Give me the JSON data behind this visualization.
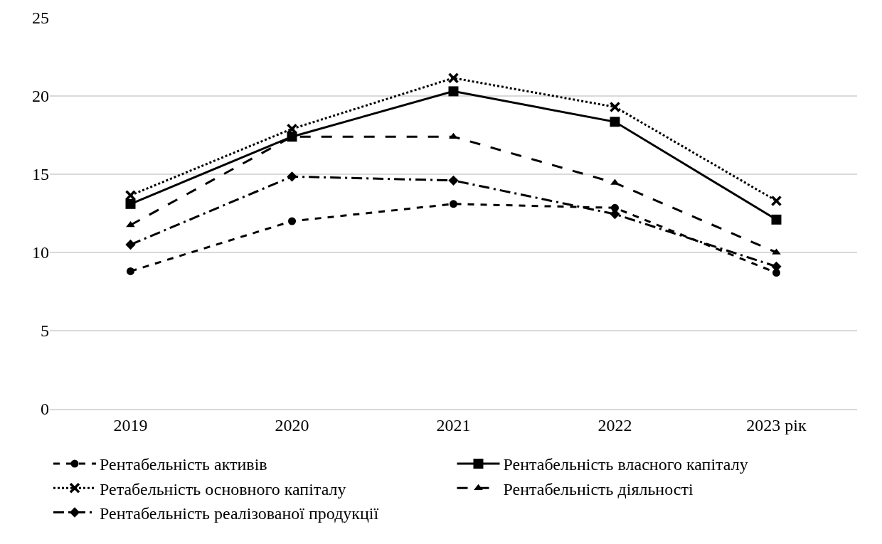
{
  "chart_data": {
    "type": "line",
    "categories": [
      "2019",
      "2020",
      "2021",
      "2022",
      "2023 рік"
    ],
    "ylim": [
      0,
      25
    ],
    "yticks": [
      0,
      5,
      10,
      15,
      20,
      25
    ],
    "grid": "y",
    "legend": "bottom",
    "series": [
      {
        "name": "Рентабельність активів",
        "color": "#000000",
        "marker": "circle",
        "line_style": "dashed",
        "values": [
          8.8,
          12.0,
          13.1,
          12.85,
          8.7
        ]
      },
      {
        "name": "Рентабельність власного капіталу",
        "color": "#000000",
        "marker": "square",
        "line_style": "solid",
        "values": [
          13.1,
          17.4,
          20.3,
          18.35,
          12.1
        ]
      },
      {
        "name": "Ретабельність основного капіталу",
        "color": "#000000",
        "marker": "cross",
        "line_style": "dotted",
        "values": [
          13.65,
          17.9,
          21.15,
          19.3,
          13.3
        ]
      },
      {
        "name": "Рентабельність діяльності",
        "color": "#000000",
        "marker": "triangle",
        "line_style": "longdash",
        "values": [
          11.75,
          17.4,
          17.4,
          14.45,
          10.0
        ]
      },
      {
        "name": "Рентабельність реалізованої продукції",
        "color": "#000000",
        "marker": "diamond",
        "line_style": "dashdot",
        "values": [
          10.5,
          14.85,
          14.6,
          12.45,
          9.1
        ]
      }
    ]
  }
}
